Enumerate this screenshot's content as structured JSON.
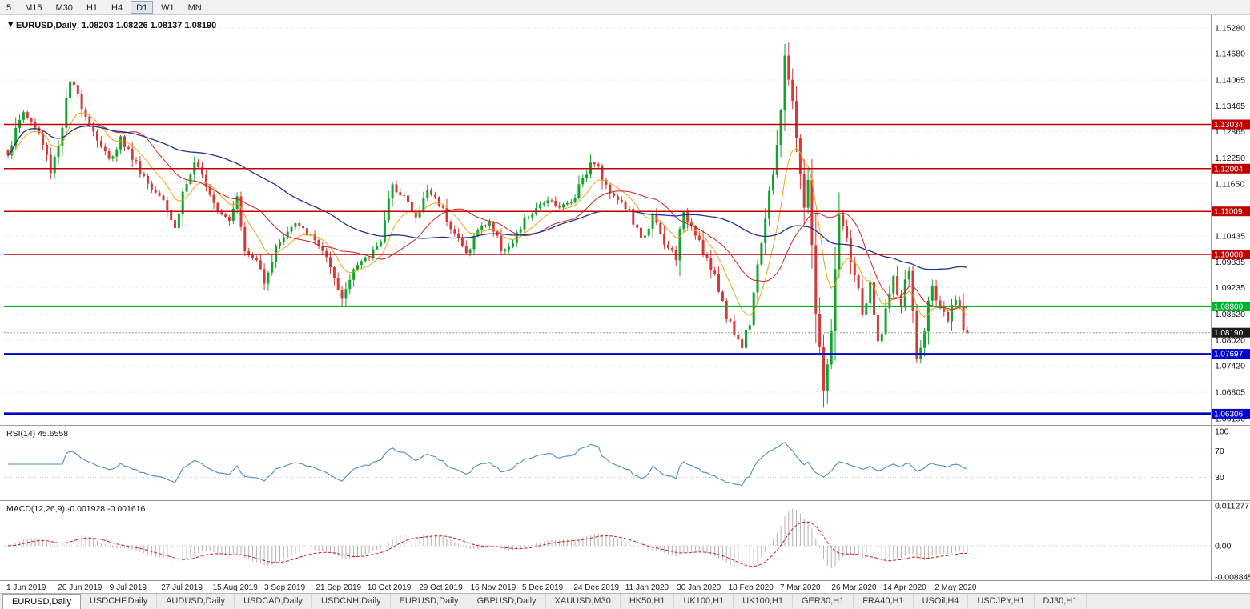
{
  "toolbar": {
    "periods": [
      "5",
      "M15",
      "M30",
      "H1",
      "H4",
      "D1",
      "W1",
      "MN"
    ],
    "active": "D1"
  },
  "chart": {
    "collapse_arrow": "▼",
    "title": "EURUSD,Daily",
    "ohlc": "1.08203 1.08226 1.08137 1.08190",
    "rsi_label": "RSI(14) 45.6558",
    "macd_label": "MACD(12,26,9) -0.001928 -0.001616"
  },
  "chart_data": {
    "type": "candlestick",
    "symbol": "EURUSD",
    "timeframe": "Daily",
    "current_ohlc": {
      "open": "1.08203",
      "high": "1.08226",
      "low": "1.08137",
      "close": "1.08190"
    },
    "bars": 248,
    "price_axis_range": [
      1.0608,
      1.155
    ],
    "price_ticks": [
      "1.15280",
      "1.14680",
      "1.14065",
      "1.13465",
      "1.12865",
      "1.12250",
      "1.11650",
      "1.10435",
      "1.09835",
      "1.09235",
      "1.08620",
      "1.08020",
      "1.07420",
      "1.06805",
      "1.06190"
    ],
    "close_anchors": [
      [
        0,
        1.124
      ],
      [
        4,
        1.1333
      ],
      [
        8,
        1.1282
      ],
      [
        11,
        1.12
      ],
      [
        13,
        1.1258
      ],
      [
        16,
        1.1402
      ],
      [
        18,
        1.137
      ],
      [
        22,
        1.1288
      ],
      [
        26,
        1.1218
      ],
      [
        29,
        1.1272
      ],
      [
        33,
        1.1212
      ],
      [
        37,
        1.1152
      ],
      [
        40,
        1.1138
      ],
      [
        43,
        1.106
      ],
      [
        45,
        1.1145
      ],
      [
        48,
        1.1208
      ],
      [
        51,
        1.117
      ],
      [
        54,
        1.1105
      ],
      [
        57,
        1.1085
      ],
      [
        59,
        1.1148
      ],
      [
        61,
        1.1005
      ],
      [
        64,
        1.0985
      ],
      [
        66,
        1.0945
      ],
      [
        70,
        1.1035
      ],
      [
        74,
        1.1072
      ],
      [
        78,
        1.1042
      ],
      [
        81,
        1.1012
      ],
      [
        84,
        1.0935
      ],
      [
        86,
        1.0895
      ],
      [
        89,
        1.0972
      ],
      [
        93,
        1.0995
      ],
      [
        96,
        1.1042
      ],
      [
        99,
        1.1158
      ],
      [
        102,
        1.1138
      ],
      [
        105,
        1.1082
      ],
      [
        108,
        1.115
      ],
      [
        111,
        1.1122
      ],
      [
        114,
        1.1068
      ],
      [
        118,
        1.1002
      ],
      [
        121,
        1.1058
      ],
      [
        124,
        1.1078
      ],
      [
        127,
        1.1012
      ],
      [
        130,
        1.1022
      ],
      [
        133,
        1.1082
      ],
      [
        136,
        1.1102
      ],
      [
        139,
        1.1132
      ],
      [
        142,
        1.1112
      ],
      [
        145,
        1.1122
      ],
      [
        148,
        1.1182
      ],
      [
        151,
        1.1222
      ],
      [
        154,
        1.1158
      ],
      [
        157,
        1.1132
      ],
      [
        160,
        1.1098
      ],
      [
        163,
        1.1032
      ],
      [
        166,
        1.1088
      ],
      [
        169,
        1.1022
      ],
      [
        172,
        1.1002
      ],
      [
        174,
        1.1092
      ],
      [
        177,
        1.1058
      ],
      [
        180,
        1.0988
      ],
      [
        183,
        1.0918
      ],
      [
        186,
        1.0838
      ],
      [
        189,
        1.0788
      ],
      [
        191,
        1.0852
      ],
      [
        193,
        1.0988
      ],
      [
        195,
        1.1078
      ],
      [
        197,
        1.1188
      ],
      [
        199,
        1.1342
      ],
      [
        200,
        1.1452
      ],
      [
        201,
        1.1408
      ],
      [
        203,
        1.1282
      ],
      [
        205,
        1.1102
      ],
      [
        206,
        1.1182
      ],
      [
        208,
        1.0862
      ],
      [
        210,
        1.0688
      ],
      [
        212,
        1.0812
      ],
      [
        214,
        1.1088
      ],
      [
        216,
        1.1028
      ],
      [
        218,
        1.0958
      ],
      [
        220,
        1.0862
      ],
      [
        222,
        1.0922
      ],
      [
        224,
        1.0792
      ],
      [
        226,
        1.0872
      ],
      [
        228,
        1.0938
      ],
      [
        230,
        1.0882
      ],
      [
        232,
        1.0972
      ],
      [
        234,
        1.0752
      ],
      [
        236,
        1.0822
      ],
      [
        238,
        1.0942
      ],
      [
        240,
        1.0872
      ],
      [
        242,
        1.0842
      ],
      [
        244,
        1.0898
      ],
      [
        246,
        1.0832
      ],
      [
        247,
        1.0819
      ]
    ],
    "moving_averages": [
      {
        "name": "fast",
        "period": 10,
        "type": "ema"
      },
      {
        "name": "mid",
        "period": 21,
        "type": "sma"
      },
      {
        "name": "slow",
        "period": 55,
        "type": "sma"
      }
    ],
    "horizontal_levels": [
      {
        "price": 1.13034,
        "label": "1.13034",
        "color": "#c00000",
        "width": 1.5
      },
      {
        "price": 1.12004,
        "label": "1.12004",
        "color": "#c00000",
        "width": 1.5
      },
      {
        "price": 1.11009,
        "label": "1.11009",
        "color": "#c00000",
        "width": 1.5
      },
      {
        "price": 1.10008,
        "label": "1.10008",
        "color": "#c00000",
        "width": 1.5
      },
      {
        "price": 1.088,
        "label": "1.08800",
        "color": "#00b32c",
        "width": 2
      },
      {
        "price": 1.07697,
        "label": "1.07697",
        "color": "#0000cc",
        "width": 2
      },
      {
        "price": 1.06306,
        "label": "1.06306",
        "color": "#0000cc",
        "width": 3
      }
    ],
    "current_price": {
      "price": 1.0819,
      "label": "1.08190",
      "badge_color": "#1c1c1c"
    },
    "indicators": {
      "rsi": {
        "label": "RSI(14)",
        "value": "45.6558",
        "axis": [
          "100",
          "70",
          "30"
        ],
        "axis_values": [
          100,
          70,
          30
        ]
      },
      "macd": {
        "label": "MACD(12,26,9)",
        "main": "-0.001928",
        "signal": "-0.001616",
        "axis": [
          "0.011277",
          "0.00",
          "-0.008845"
        ]
      }
    },
    "x_axis_dates": [
      "1 Jun 2019",
      "20 Jun 2019",
      "9 Jul 2019",
      "27 Jul 2019",
      "15 Aug 2019",
      "3 Sep 2019",
      "21 Sep 2019",
      "10 Oct 2019",
      "29 Oct 2019",
      "16 Nov 2019",
      "5 Dec 2019",
      "24 Dec 2019",
      "11 Jan 2020",
      "30 Jan 2020",
      "18 Feb 2020",
      "7 Mar 2020",
      "26 Mar 2020",
      "14 Apr 2020",
      "2 May 2020"
    ]
  },
  "colors": {
    "up": "#13a42e",
    "down": "#d33a3a",
    "ma_fast": "#f2a013",
    "ma_mid": "#cf2222",
    "ma_slow": "#20338f",
    "rsi": "#4c8ebe",
    "macd_hist": "#b4b4b4",
    "macd_signal": "#c22222",
    "grid": "#e8e8e8",
    "separator": "#9c9c9c"
  },
  "tabs": {
    "active_index": 0,
    "items": [
      "EURUSD,Daily",
      "USDCHF,Daily",
      "AUDUSD,Daily",
      "USDCAD,Daily",
      "USDCNH,Daily",
      "EURUSD,Daily",
      "GBPUSD,Daily",
      "XAUUSD,M30",
      "HK50,H1",
      "UK100,H1",
      "UK100,H1",
      "GER30,H1",
      "FRA40,H1",
      "USOil,H4",
      "USDJPY,H1",
      "DJ30,H1"
    ]
  }
}
